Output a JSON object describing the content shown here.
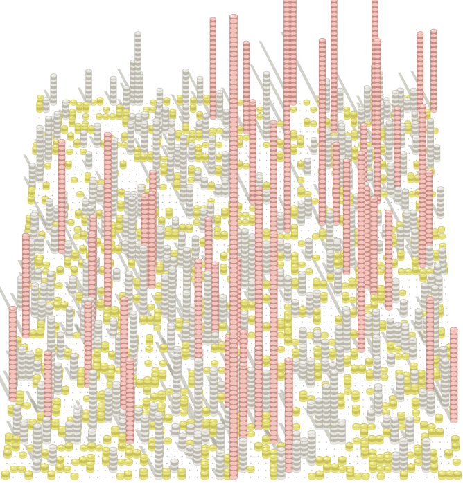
{
  "scene": {
    "background": "#ffffff",
    "palette": {
      "ground_dot": "#9a9a78",
      "low_stack": "#e8e27a",
      "low_stack_shade": "#c9c25a",
      "mid_stack": "#e8e6e0",
      "mid_stack_shade": "#bdb9ad",
      "high_stack": "#f1c6bf",
      "high_stack_shade": "#c98a82",
      "shadow": "#7d7b63"
    },
    "grid": {
      "columns": 60,
      "rows": 54
    }
  }
}
